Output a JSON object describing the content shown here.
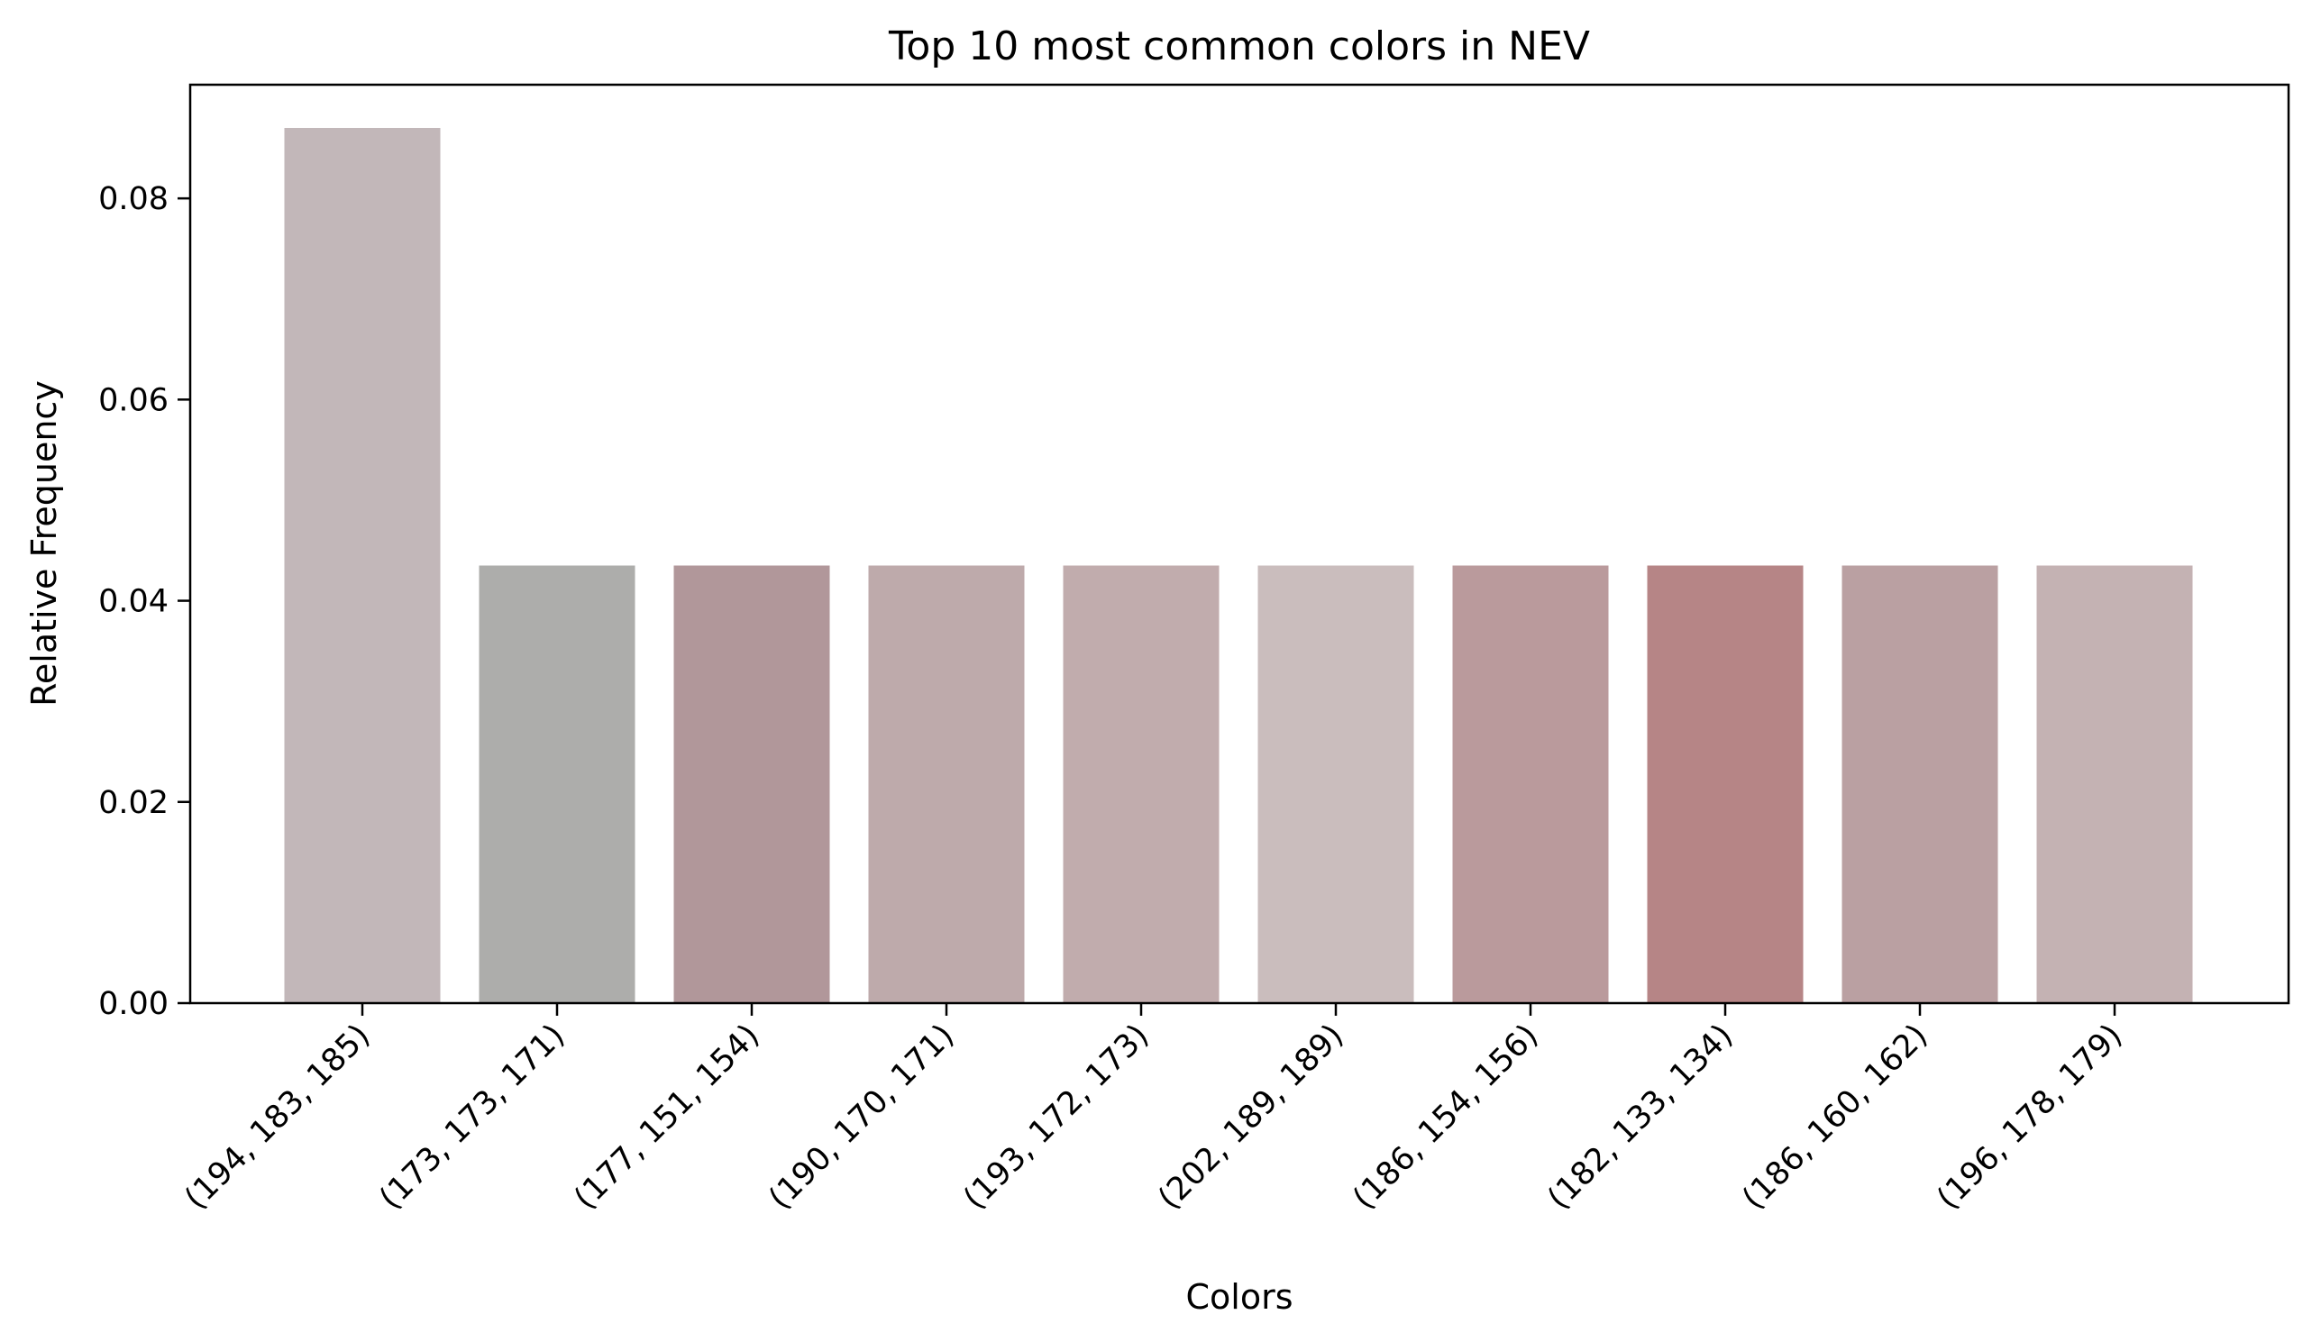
{
  "chart_data": {
    "type": "bar",
    "title": "Top 10 most common colors in NEV",
    "xlabel": "Colors",
    "ylabel": "Relative Frequency",
    "ylim": [
      0,
      0.0913
    ],
    "yticks": [
      0.0,
      0.02,
      0.04,
      0.06,
      0.08
    ],
    "ytick_labels": [
      "0.00",
      "0.02",
      "0.04",
      "0.06",
      "0.08"
    ],
    "grid": false,
    "categories": [
      "(194, 183, 185)",
      "(173, 173, 171)",
      "(177, 151, 154)",
      "(190, 170, 171)",
      "(193, 172, 173)",
      "(202, 189, 189)",
      "(186, 154, 156)",
      "(182, 133, 134)",
      "(186, 160, 162)",
      "(196, 178, 179)"
    ],
    "values": [
      0.087,
      0.0435,
      0.0435,
      0.0435,
      0.0435,
      0.0435,
      0.0435,
      0.0435,
      0.0435,
      0.0435
    ],
    "colors": [
      "#c2b7b9",
      "#adadab",
      "#b1979a",
      "#beaaab",
      "#c1acad",
      "#cabdbd",
      "#ba9a9c",
      "#b68586",
      "#baa0a2",
      "#c4b2b3"
    ]
  }
}
